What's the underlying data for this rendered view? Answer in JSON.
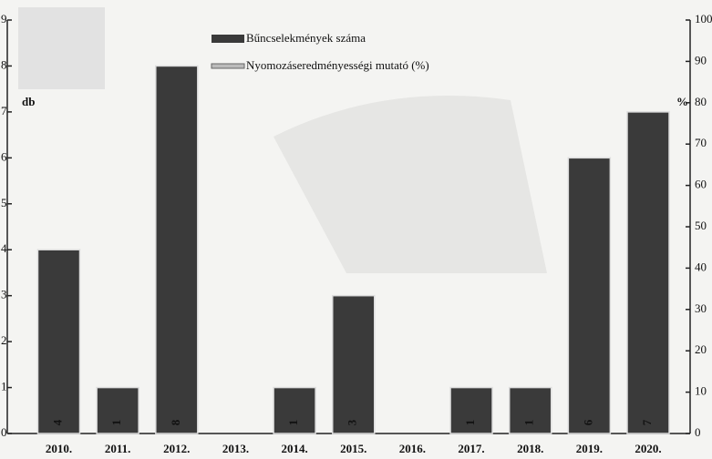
{
  "chart_data": {
    "type": "bar",
    "y_label": "db",
    "y2_label": "%",
    "categories": [
      "2010.",
      "2011.",
      "2012.",
      "2013.",
      "2014.",
      "2015.",
      "2016.",
      "2017.",
      "2018.",
      "2019.",
      "2020."
    ],
    "series": [
      {
        "name": "Bűncselekmények száma",
        "color": "#3a3a3a",
        "values": [
          4,
          1,
          8,
          null,
          1,
          3,
          null,
          1,
          1,
          6,
          7
        ]
      },
      {
        "name": "Nyomozáseredményességi mutató (%)",
        "axis": "y2",
        "values": [
          null,
          null,
          null,
          null,
          null,
          null,
          null,
          null,
          null,
          null,
          null
        ]
      }
    ],
    "ylim": [
      0,
      9
    ],
    "yticks": [
      0,
      1,
      2,
      3,
      4,
      5,
      6,
      7,
      8,
      9
    ],
    "y2lim": [
      0,
      100
    ],
    "y2ticks": [
      0,
      10,
      20,
      30,
      40,
      50,
      60,
      70,
      80,
      90,
      100
    ]
  }
}
